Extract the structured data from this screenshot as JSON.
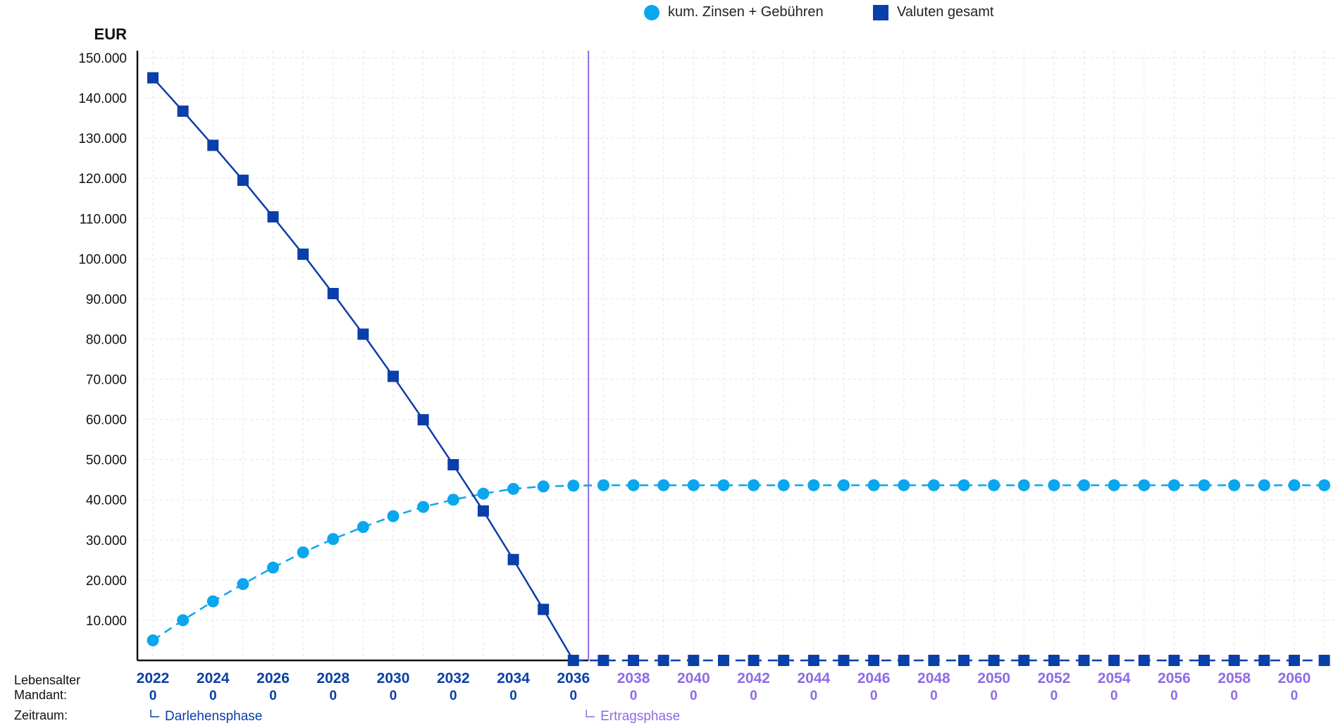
{
  "chart_data": {
    "type": "line",
    "ylabel": "EUR",
    "ylim": [
      0,
      150000
    ],
    "yticks": [
      10000,
      20000,
      30000,
      40000,
      50000,
      60000,
      70000,
      80000,
      90000,
      100000,
      110000,
      120000,
      130000,
      140000,
      150000
    ],
    "ytick_labels": [
      "10.000",
      "20.000",
      "30.000",
      "40.000",
      "50.000",
      "60.000",
      "70.000",
      "80.000",
      "90.000",
      "100.000",
      "110.000",
      "120.000",
      "130.000",
      "140.000",
      "150.000"
    ],
    "xlim": [
      2022,
      2061
    ],
    "x": [
      2022,
      2023,
      2024,
      2025,
      2026,
      2027,
      2028,
      2029,
      2030,
      2031,
      2032,
      2033,
      2034,
      2035,
      2036,
      2037,
      2038,
      2039,
      2040,
      2041,
      2042,
      2043,
      2044,
      2045,
      2046,
      2047,
      2048,
      2049,
      2050,
      2051,
      2052,
      2053,
      2054,
      2055,
      2056,
      2057,
      2058,
      2059,
      2060,
      2061
    ],
    "x_tick_labels": [
      "2022",
      "2024",
      "2026",
      "2028",
      "2030",
      "2032",
      "2034",
      "2036",
      "2038",
      "2040",
      "2042",
      "2044",
      "2046",
      "2048",
      "2050",
      "2052",
      "2054",
      "2056",
      "2058",
      "2060"
    ],
    "age_labels": [
      "0",
      "0",
      "0",
      "0",
      "0",
      "0",
      "0",
      "0",
      "0",
      "0",
      "0",
      "0",
      "0",
      "0",
      "0",
      "0",
      "0",
      "0",
      "0",
      "0"
    ],
    "series": [
      {
        "name": "kum. Zinsen + Gebühren",
        "marker": "circle",
        "line_style": "dashed",
        "color": "#0aa6ee",
        "values": [
          5000,
          10000,
          14700,
          19000,
          23100,
          26900,
          30200,
          33200,
          35900,
          38200,
          40000,
          41500,
          42700,
          43300,
          43500,
          43600,
          43600,
          43600,
          43600,
          43600,
          43600,
          43600,
          43600,
          43600,
          43600,
          43600,
          43600,
          43600,
          43600,
          43600,
          43600,
          43600,
          43600,
          43600,
          43600,
          43600,
          43600,
          43600,
          43600,
          43600
        ]
      },
      {
        "name": "Valuten gesamt",
        "marker": "square",
        "line_style": "solid-then-dashed",
        "color": "#0a3ea8",
        "values": [
          145000,
          136700,
          128200,
          119500,
          110400,
          101100,
          91300,
          81200,
          70700,
          59900,
          48700,
          37200,
          25100,
          12700,
          0,
          0,
          0,
          0,
          0,
          0,
          0,
          0,
          0,
          0,
          0,
          0,
          0,
          0,
          0,
          0,
          0,
          0,
          0,
          0,
          0,
          0,
          0,
          0,
          0,
          0
        ]
      }
    ],
    "phases": [
      {
        "label": "Darlehensphase",
        "start": 2022,
        "color": "#0a3ea8"
      },
      {
        "label": "Ertragsphase",
        "start": 2036.5,
        "color": "#8f6ae8"
      }
    ],
    "row_labels": {
      "age": "Lebensalter\nMandant:",
      "period": "Zeitraum:"
    },
    "grid": true,
    "legend_position": "top-right"
  }
}
